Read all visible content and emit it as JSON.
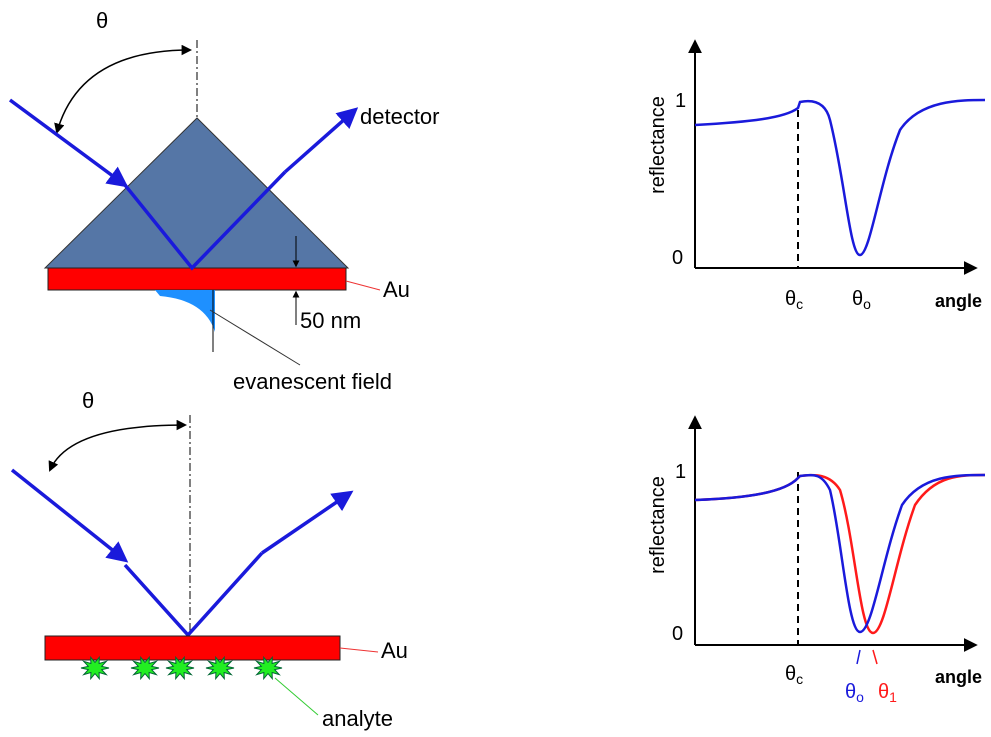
{
  "top_setup": {
    "angle_label": "θ",
    "detector_label": "detector",
    "gold_label": "Au",
    "thickness_label": "50 nm",
    "field_label": "evanescent field"
  },
  "bottom_setup": {
    "angle_label": "θ",
    "gold_label": "Au",
    "analyte_label": "analyte"
  },
  "top_plot": {
    "y_label": "reflectance",
    "y_high": "1",
    "y_low": "0",
    "x_label": "angle",
    "critical": {
      "symbol": "θ",
      "subscript": "c"
    },
    "resonance": {
      "symbol": "θ",
      "subscript": "o"
    }
  },
  "bottom_plot": {
    "y_label": "reflectance",
    "y_high": "1",
    "y_low": "0",
    "x_label": "angle",
    "critical": {
      "symbol": "θ",
      "subscript": "c"
    },
    "resonance_before": {
      "symbol": "θ",
      "subscript": "o"
    },
    "resonance_after": {
      "symbol": "θ",
      "subscript": "1"
    }
  }
}
